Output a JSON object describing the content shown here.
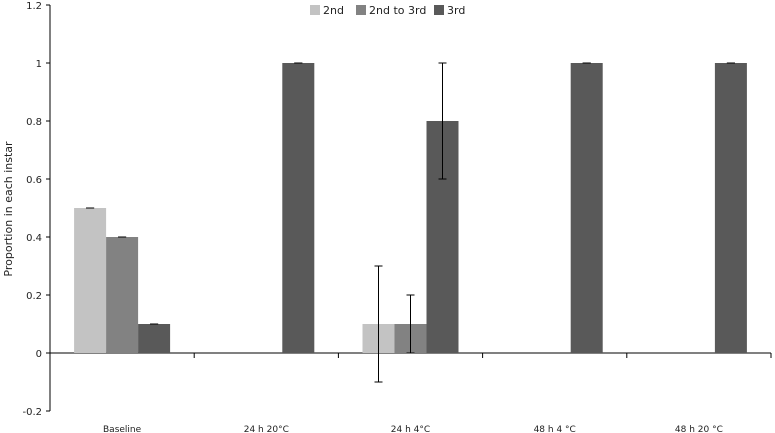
{
  "chart_data": {
    "type": "bar",
    "title": "",
    "xlabel": "",
    "ylabel": "Proportion in each instar",
    "ylim": [
      -0.2,
      1.2
    ],
    "yticks": [
      "-0.2",
      "0",
      "0.2",
      "0.4",
      "0.6",
      "0.8",
      "1",
      "1.2"
    ],
    "grid": false,
    "legend_position": "top-center",
    "categories": [
      "Baseline",
      "24 h 20°C",
      "24 h 4°C",
      "48 h 4 °C",
      "48 h 20 °C"
    ],
    "series": [
      {
        "name": "2nd",
        "color": "#c3c3c3",
        "values": [
          0.5,
          0,
          0.1,
          0,
          0
        ],
        "errors": [
          0.0,
          0,
          0.2,
          0,
          0
        ]
      },
      {
        "name": "2nd to 3rd",
        "color": "#828282",
        "values": [
          0.4,
          0,
          0.1,
          0,
          0
        ],
        "errors": [
          0.0,
          0,
          0.1,
          0,
          0
        ]
      },
      {
        "name": "3rd",
        "color": "#595959",
        "values": [
          0.1,
          1.0,
          0.8,
          1.0,
          1.0
        ],
        "errors": [
          0.0,
          0.0,
          0.2,
          0.0,
          0.0
        ]
      }
    ]
  }
}
